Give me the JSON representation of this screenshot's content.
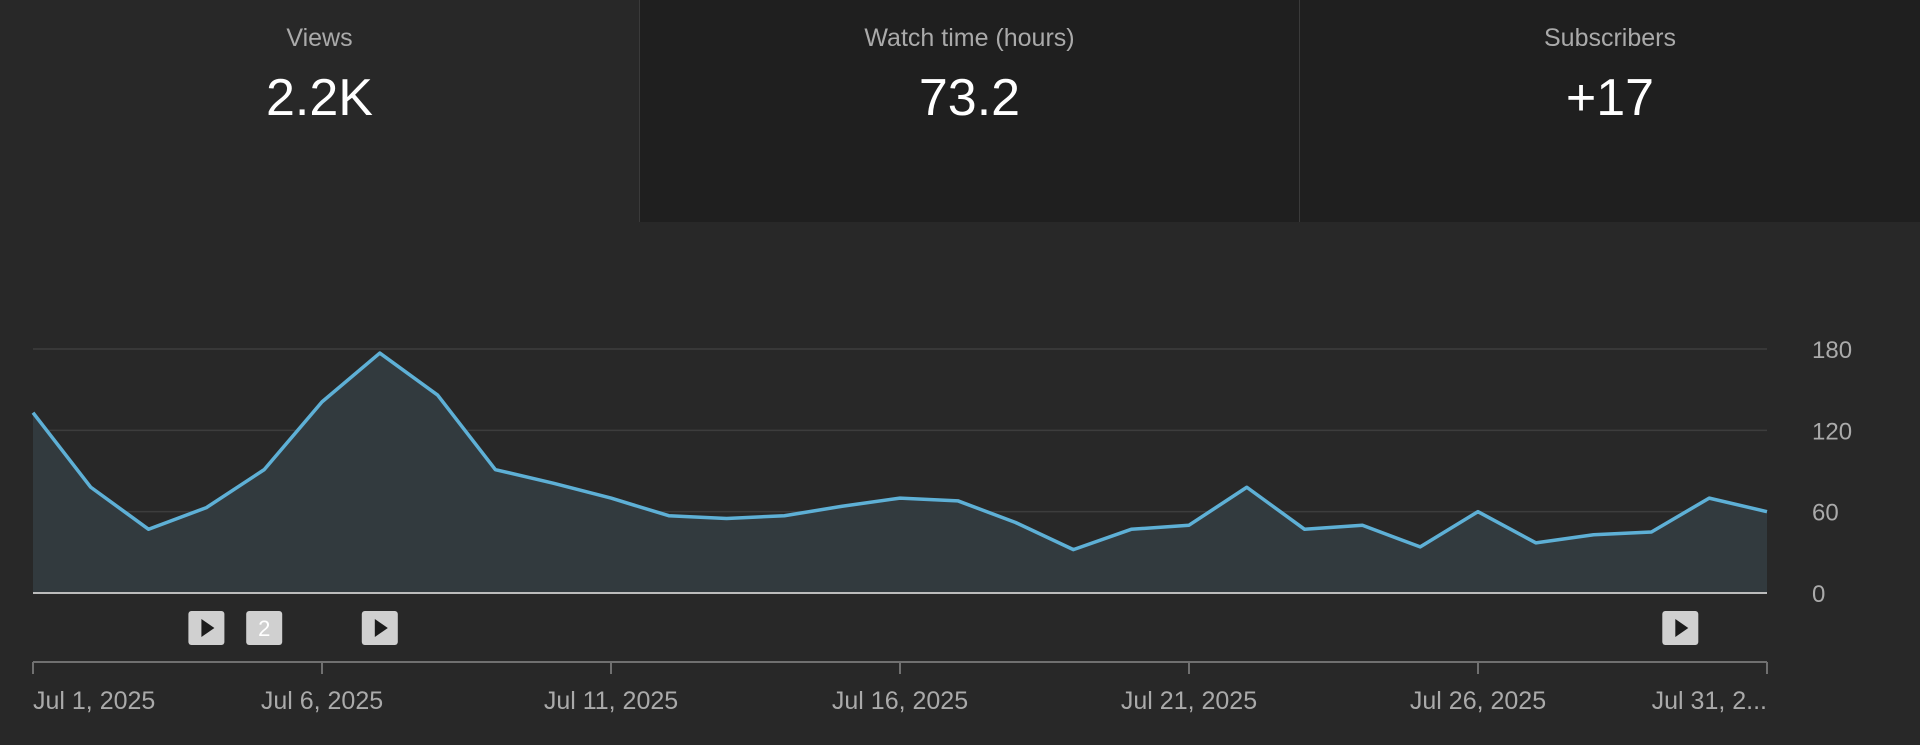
{
  "metrics": [
    {
      "label": "Views",
      "value": "2.2K",
      "active": true
    },
    {
      "label": "Watch time (hours)",
      "value": "73.2",
      "active": false
    },
    {
      "label": "Subscribers",
      "value": "+17",
      "active": false
    }
  ],
  "chart_data": {
    "type": "area",
    "series": [
      {
        "color": "#5eb0d6",
        "values": [
          133,
          78,
          47,
          63,
          91,
          141,
          177,
          146,
          91,
          81,
          70,
          57,
          55,
          57,
          64,
          70,
          68,
          52,
          32,
          47,
          50,
          78,
          47,
          50,
          34,
          60,
          37,
          43,
          45,
          70,
          60
        ]
      }
    ],
    "ylim": [
      0,
      180
    ],
    "yticks": [
      "180",
      "120",
      "60",
      "0"
    ],
    "ytick_values": [
      180,
      120,
      60,
      0
    ],
    "xticks": [
      "Jul 1, 2025",
      "Jul 6, 2025",
      "Jul 11, 2025",
      "Jul 16, 2025",
      "Jul 21, 2025",
      "Jul 26, 2025",
      "Jul 31, 2..."
    ],
    "xtick_days": [
      1,
      6,
      11,
      16,
      21,
      26,
      31
    ],
    "grid": true,
    "markers": [
      {
        "day": 4,
        "label": "",
        "icon": "play-icon"
      },
      {
        "day": 5,
        "label": "2",
        "icon": "count-badge"
      },
      {
        "day": 7,
        "label": "",
        "icon": "play-icon"
      },
      {
        "day": 29.5,
        "label": "",
        "icon": "play-icon"
      }
    ],
    "colors": {
      "line": "#5eb0d6",
      "fill": "#323a3e",
      "grid": "#3d3d3d",
      "baseline": "#bcbcbc",
      "marker_bg": "#d0d0d0"
    }
  }
}
